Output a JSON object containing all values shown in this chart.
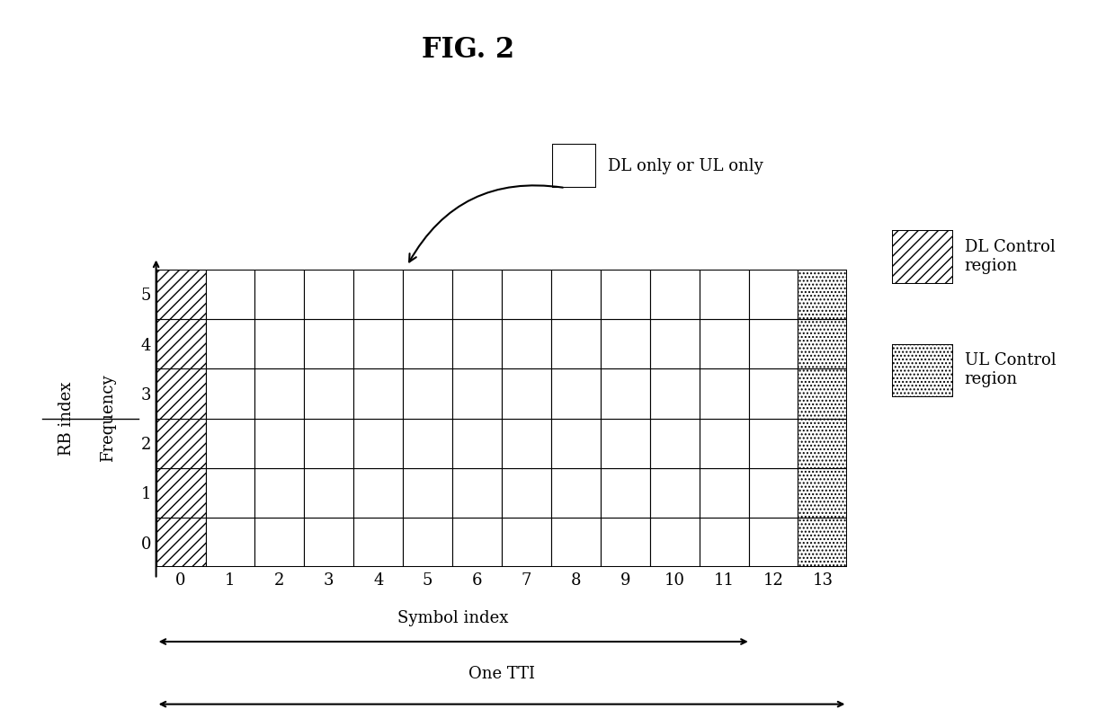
{
  "title": "FIG. 2",
  "grid_cols": 14,
  "grid_rows": 6,
  "col_labels": [
    "0",
    "1",
    "2",
    "3",
    "4",
    "5",
    "6",
    "7",
    "8",
    "9",
    "10",
    "11",
    "12",
    "13"
  ],
  "row_labels": [
    "0",
    "1",
    "2",
    "3",
    "4",
    "5"
  ],
  "xlabel": "Symbol index",
  "x_arrow_label": "One TTI",
  "ylabel_frequency": "Frequency",
  "ylabel_rb": "RB index",
  "dl_control_col": 0,
  "ul_control_col": 13,
  "legend_dl_label": "DL Control\nregion",
  "legend_ul_label": "UL Control\nregion",
  "annotation_label": "DL only or UL only",
  "bg_color": "#ffffff",
  "grid_color": "#000000",
  "hatch_dl": "///",
  "hatch_ul": "....",
  "figsize": [
    12.4,
    7.89
  ]
}
